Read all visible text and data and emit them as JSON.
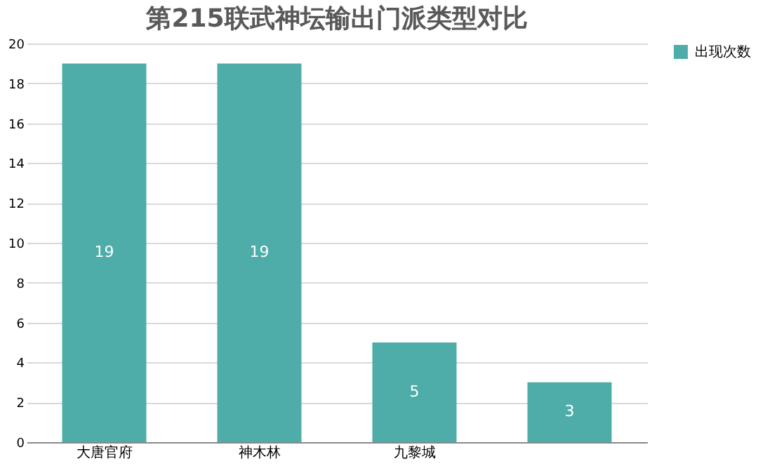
{
  "chart_data": {
    "type": "bar",
    "title": "第215联武神坛输出门派类型对比",
    "categories": [
      "大唐官府",
      "神木林",
      "九黎城",
      null
    ],
    "series": [
      {
        "name": "出现次数",
        "color": "#4ead a8",
        "values": [
          19,
          19,
          5,
          3
        ]
      }
    ],
    "ylim": [
      0,
      20
    ],
    "yticks": [
      0,
      2,
      4,
      6,
      8,
      10,
      12,
      14,
      16,
      18,
      20
    ],
    "grid": "y",
    "legend": "right",
    "data_labels": true
  }
}
